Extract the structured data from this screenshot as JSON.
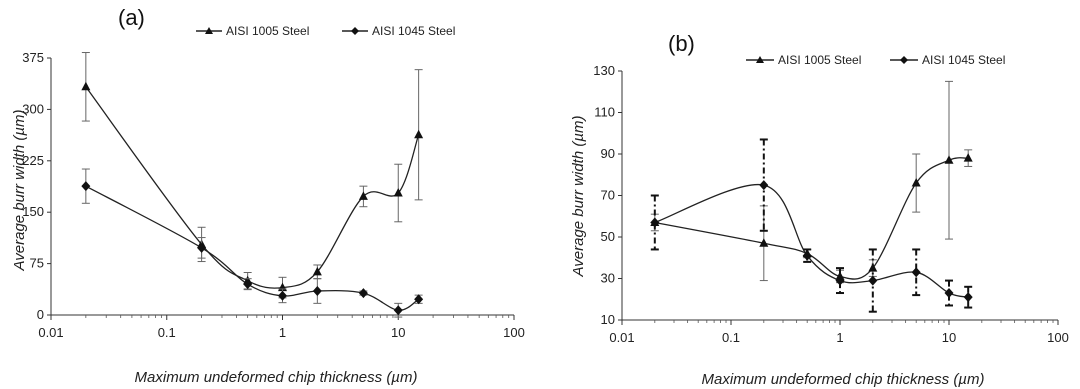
{
  "chart_data": [
    {
      "type": "line",
      "panel_label": "(a)",
      "xlabel": "Maximum undeformed chip thickness (µm)",
      "ylabel": "Average burr width  (µm)",
      "x_scale": "log",
      "xlim": [
        0.01,
        100
      ],
      "ylim": [
        0,
        375
      ],
      "x_ticks": [
        0.01,
        0.1,
        1,
        10,
        100
      ],
      "x_tick_labels": [
        "0.01",
        "0.1",
        "1",
        "10",
        "100"
      ],
      "y_ticks": [
        0,
        75,
        150,
        225,
        300,
        375
      ],
      "y_tick_labels": [
        "0",
        "75",
        "150",
        "225",
        "300",
        "375"
      ],
      "legend_position": "top",
      "series": [
        {
          "name": "AISI 1005 Steel",
          "marker": "triangle",
          "points": [
            {
              "x": 0.02,
              "y": 333,
              "err": 50
            },
            {
              "x": 0.2,
              "y": 103,
              "err": 25
            },
            {
              "x": 0.5,
              "y": 50,
              "err": 12
            },
            {
              "x": 1,
              "y": 40,
              "err": 15
            },
            {
              "x": 2,
              "y": 63,
              "err": 10
            },
            {
              "x": 5,
              "y": 173,
              "err": 15
            },
            {
              "x": 10,
              "y": 178,
              "err": 42
            },
            {
              "x": 15,
              "y": 263,
              "err": 95
            }
          ]
        },
        {
          "name": "AISI 1045 Steel",
          "marker": "diamond",
          "points": [
            {
              "x": 0.02,
              "y": 188,
              "err": 25
            },
            {
              "x": 0.2,
              "y": 98,
              "err": 15
            },
            {
              "x": 0.5,
              "y": 45,
              "err": 8
            },
            {
              "x": 1,
              "y": 28,
              "err": 10
            },
            {
              "x": 2,
              "y": 35,
              "err": 18
            },
            {
              "x": 5,
              "y": 32,
              "err": 3
            },
            {
              "x": 10,
              "y": 7,
              "err": 10
            },
            {
              "x": 15,
              "y": 23,
              "err": 6
            }
          ]
        }
      ]
    },
    {
      "type": "line",
      "panel_label": "(b)",
      "xlabel": "Maximum undeformed chip thickness (µm)",
      "ylabel": "Average burr width  (µm)",
      "x_scale": "log",
      "xlim": [
        0.01,
        100
      ],
      "ylim": [
        10,
        130
      ],
      "x_ticks": [
        0.01,
        0.1,
        1,
        10,
        100
      ],
      "x_tick_labels": [
        "0.01",
        "0.1",
        "1",
        "10",
        "100"
      ],
      "y_ticks": [
        10,
        30,
        50,
        70,
        90,
        110,
        130
      ],
      "y_tick_labels": [
        "10",
        "30",
        "50",
        "70",
        "90",
        "110",
        "130"
      ],
      "legend_position": "top",
      "series": [
        {
          "name": "AISI 1005 Steel",
          "marker": "triangle",
          "points": [
            {
              "x": 0.02,
              "y": 57,
              "err": 4
            },
            {
              "x": 0.2,
              "y": 47,
              "err": 18
            },
            {
              "x": 0.5,
              "y": 42,
              "err": 2
            },
            {
              "x": 1,
              "y": 31,
              "err": 3
            },
            {
              "x": 2,
              "y": 35,
              "err": 4
            },
            {
              "x": 5,
              "y": 76,
              "err": 14
            },
            {
              "x": 10,
              "y": 87,
              "err": 38
            },
            {
              "x": 15,
              "y": 88,
              "err": 4
            }
          ]
        },
        {
          "name": "AISI 1045 Steel",
          "marker": "diamond",
          "err_dashed": true,
          "points": [
            {
              "x": 0.02,
              "y": 57,
              "err": 13
            },
            {
              "x": 0.2,
              "y": 75,
              "err": 22
            },
            {
              "x": 0.5,
              "y": 41,
              "err": 3
            },
            {
              "x": 1,
              "y": 29,
              "err": 6
            },
            {
              "x": 2,
              "y": 29,
              "err": 15
            },
            {
              "x": 5,
              "y": 33,
              "err": 11
            },
            {
              "x": 10,
              "y": 23,
              "err": 6
            },
            {
              "x": 15,
              "y": 21,
              "err": 5
            }
          ]
        }
      ]
    }
  ]
}
